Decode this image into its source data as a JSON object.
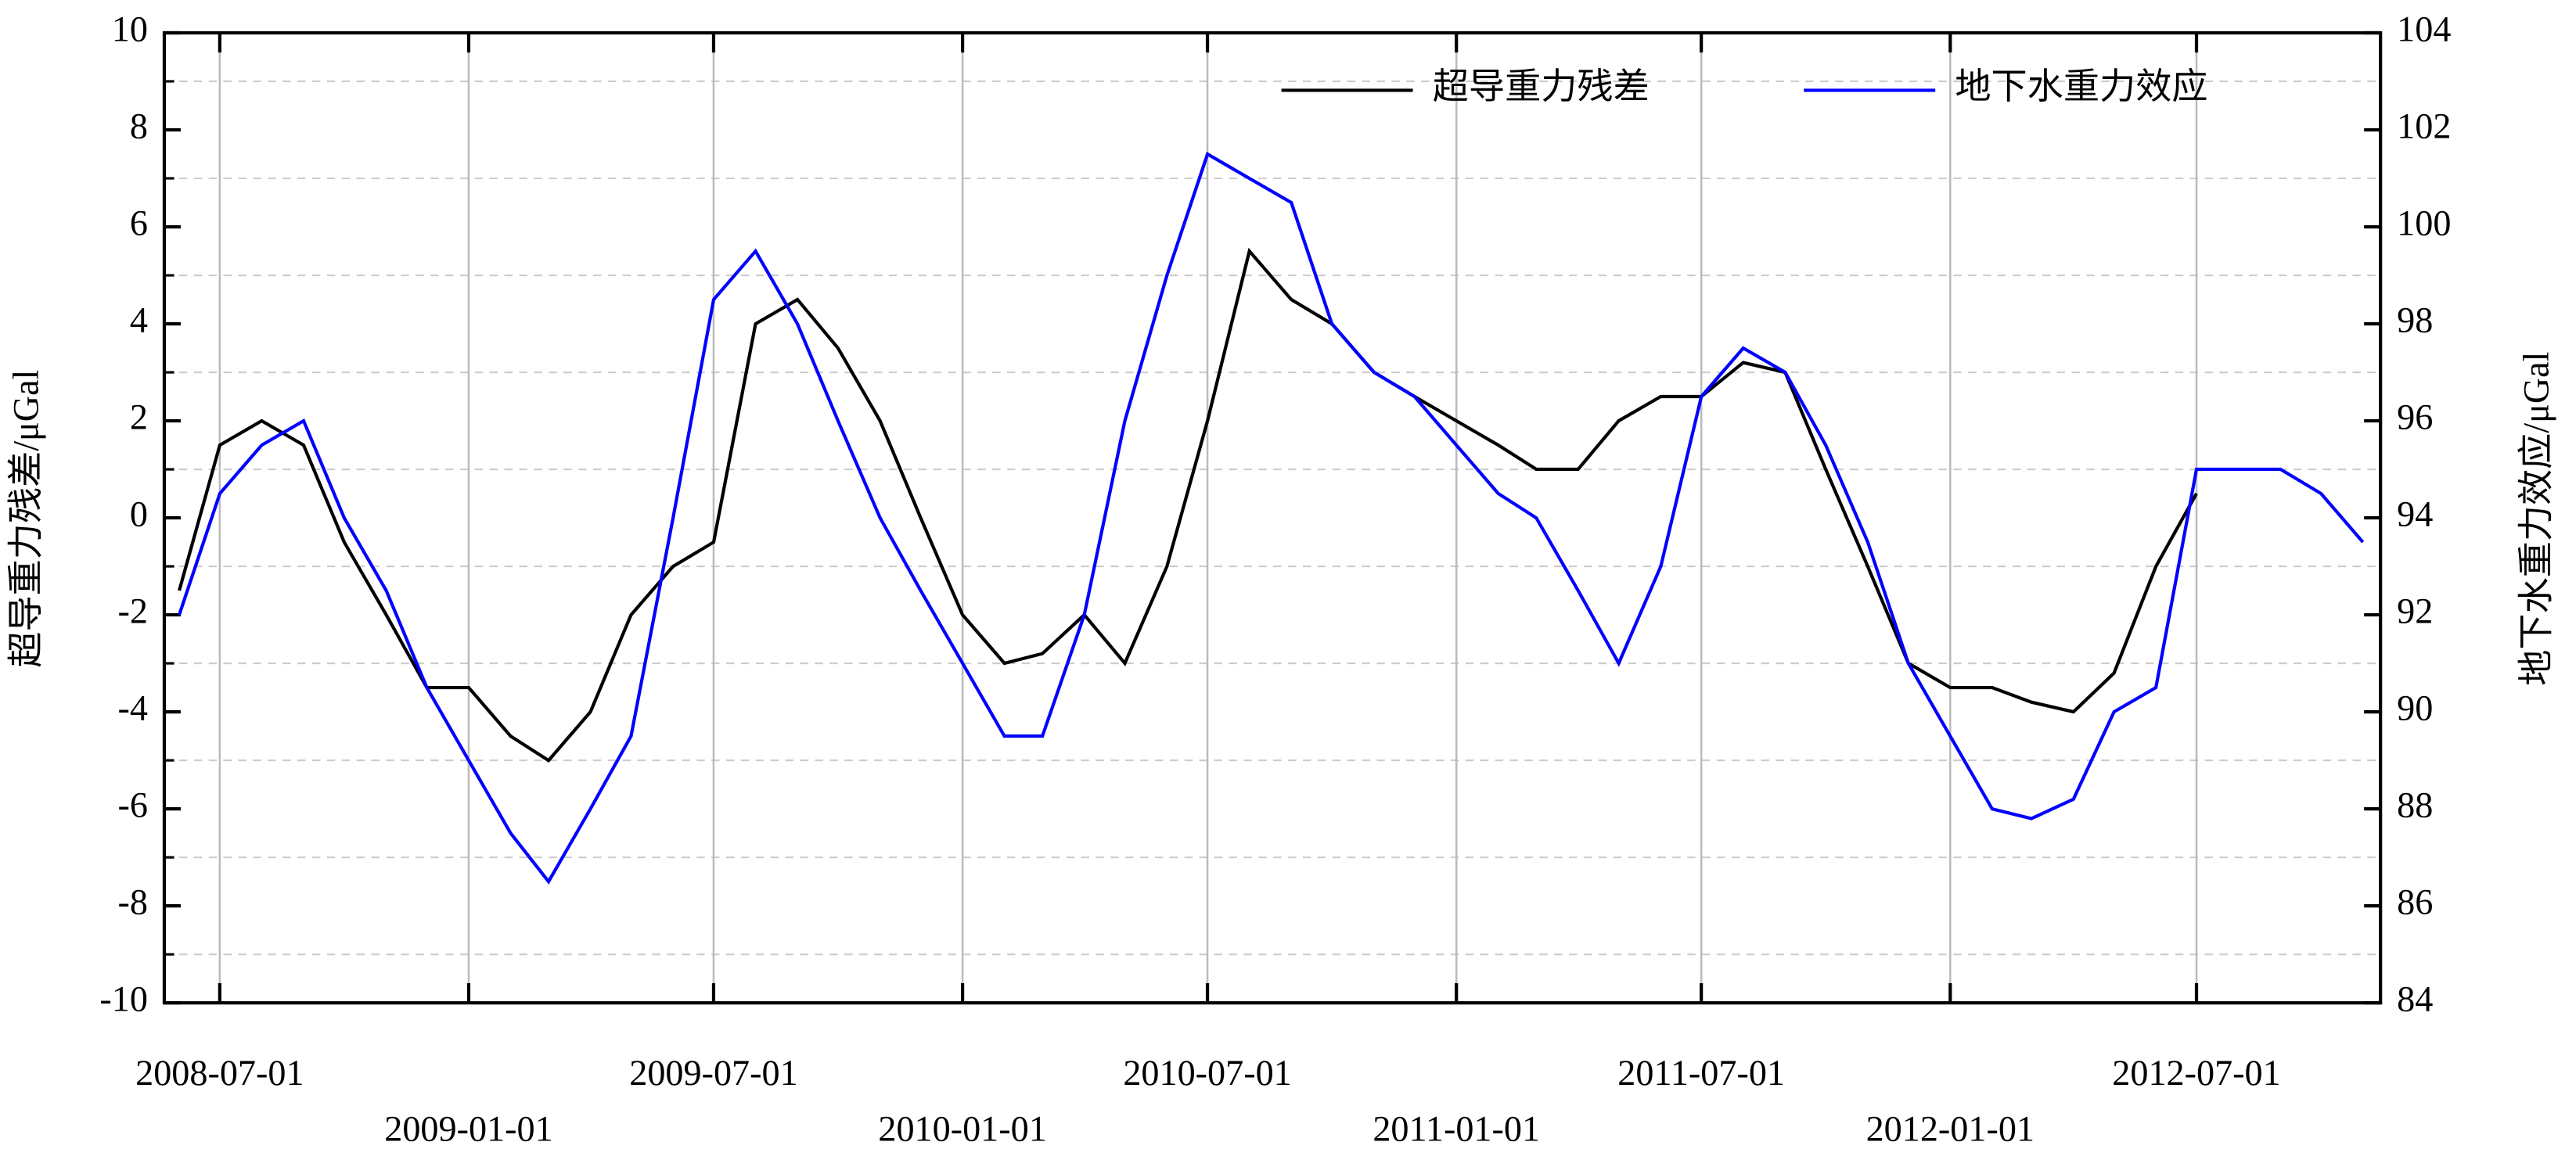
{
  "chart_data": {
    "type": "line",
    "y_label": "超导重力残差/μGal",
    "y2_label": "地下水重力效应/μGal",
    "x": [
      "2008-06-01",
      "2008-07-01",
      "2008-08-01",
      "2008-09-01",
      "2008-10-01",
      "2008-11-01",
      "2008-12-01",
      "2009-01-01",
      "2009-02-01",
      "2009-03-01",
      "2009-04-01",
      "2009-05-01",
      "2009-06-01",
      "2009-07-01",
      "2009-08-01",
      "2009-09-01",
      "2009-10-01",
      "2009-11-01",
      "2009-12-01",
      "2010-01-01",
      "2010-02-01",
      "2010-03-01",
      "2010-04-01",
      "2010-05-01",
      "2010-06-01",
      "2010-07-01",
      "2010-08-01",
      "2010-09-01",
      "2010-10-01",
      "2010-11-01",
      "2010-12-01",
      "2011-01-01",
      "2011-02-01",
      "2011-03-01",
      "2011-04-01",
      "2011-05-01",
      "2011-06-01",
      "2011-07-01",
      "2011-08-01",
      "2011-09-01",
      "2011-10-01",
      "2011-11-01",
      "2011-12-01",
      "2012-01-01",
      "2012-02-01",
      "2012-03-01",
      "2012-04-01",
      "2012-05-01",
      "2012-06-01",
      "2012-07-01",
      "2012-08-01",
      "2012-09-01",
      "2012-10-01",
      "2012-11-01"
    ],
    "series": [
      {
        "name": "超导重力残差",
        "color": "#000000",
        "values": [
          -1.5,
          1.5,
          2.0,
          1.5,
          -0.5,
          -2,
          -3.5,
          -3.5,
          -4.5,
          -5,
          -4,
          -2,
          -1,
          -0.5,
          4,
          4.5,
          3.5,
          2,
          0,
          -2,
          -3,
          -2.8,
          -2,
          -3,
          -1,
          2,
          5.5,
          4.5,
          4,
          3,
          2.5,
          2,
          1.5,
          1,
          1,
          2,
          2.5,
          2.5,
          3.2,
          3,
          1,
          -1,
          -3,
          -3.5,
          -3.5,
          -3.8,
          -4,
          -3.2,
          -1,
          0.5,
          null,
          null,
          null,
          null
        ]
      },
      {
        "name": "地下水重力效应",
        "color": "#0000ff",
        "axis": "y2",
        "values": [
          92,
          94.5,
          95.5,
          96,
          94,
          92.5,
          90.5,
          89,
          87.5,
          86.5,
          88,
          89.5,
          94,
          98.5,
          99.5,
          98,
          96,
          94,
          92.5,
          91,
          89.5,
          89.5,
          92,
          96,
          99,
          101.5,
          101,
          100.5,
          98,
          97,
          96.5,
          95.5,
          94.5,
          94,
          92.5,
          91,
          93,
          96.5,
          97.5,
          97,
          95.5,
          93.5,
          91,
          89.5,
          88,
          87.8,
          88.2,
          90,
          90.5,
          95,
          95,
          95,
          94.5,
          93.5
        ]
      }
    ],
    "xlim": [
      "2008-05-21",
      "2012-11-14"
    ],
    "xticks": [
      "2008-07-01",
      "2009-01-01",
      "2009-07-01",
      "2010-01-01",
      "2010-07-01",
      "2011-01-01",
      "2011-07-01",
      "2012-01-01",
      "2012-07-01"
    ],
    "ylim": [
      -10,
      10
    ],
    "yticks": [
      -10,
      -8,
      -6,
      -4,
      -2,
      0,
      2,
      4,
      6,
      8,
      10
    ],
    "y2lim": [
      84,
      104
    ],
    "y2ticks": [
      84,
      86,
      88,
      90,
      92,
      94,
      96,
      98,
      100,
      102,
      104
    ],
    "y_minor_ticks": [
      -9,
      -7,
      -5,
      -3,
      -1,
      1,
      3,
      5,
      7,
      9
    ],
    "grid": true,
    "legend": "upper right"
  }
}
